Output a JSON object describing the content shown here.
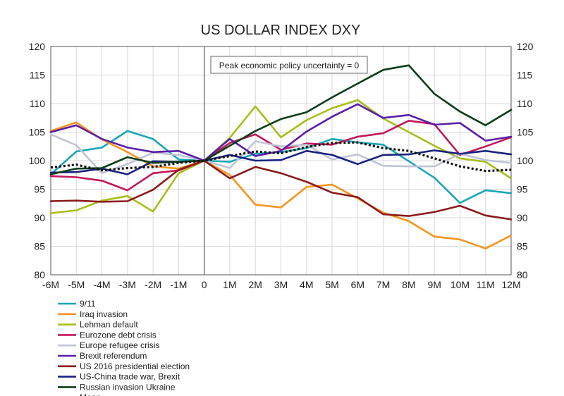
{
  "chart_data": {
    "type": "line",
    "title": "US DOLLAR INDEX DXY",
    "annotation": "Peak economic policy uncertainty = 0",
    "x": [
      "-6M",
      "-5M",
      "-4M",
      "-3M",
      "-2M",
      "-1M",
      "0",
      "1M",
      "2M",
      "3M",
      "4M",
      "5M",
      "6M",
      "7M",
      "8M",
      "9M",
      "10M",
      "11M",
      "12M"
    ],
    "ylim": [
      80,
      120
    ],
    "yticks": [
      80,
      85,
      90,
      95,
      100,
      105,
      110,
      115,
      120
    ],
    "grid": true,
    "legend_position": "bottom-left",
    "series": [
      {
        "name": "9/11",
        "color": "#1aa6b7",
        "dash": false,
        "values": [
          97.6,
          101.6,
          102.3,
          105.2,
          103.8,
          100.2,
          100.0,
          99.8,
          101.2,
          101.5,
          102.2,
          103.8,
          103.2,
          102.8,
          99.9,
          97.0,
          92.6,
          94.8,
          94.3
        ]
      },
      {
        "name": "Iraq invasion",
        "color": "#f7941d",
        "dash": false,
        "values": [
          105.2,
          106.7,
          103.7,
          101.5,
          99.0,
          98.6,
          100.0,
          97.5,
          92.3,
          91.8,
          95.4,
          95.8,
          93.4,
          90.9,
          89.4,
          86.7,
          86.2,
          84.6,
          86.9
        ]
      },
      {
        "name": "Lehman default",
        "color": "#a8bd1a",
        "dash": false,
        "values": [
          90.8,
          91.3,
          93.0,
          93.8,
          91.1,
          97.8,
          100.0,
          104.0,
          109.5,
          104.1,
          107.1,
          109.2,
          110.6,
          107.4,
          105.0,
          102.6,
          100.4,
          99.8,
          96.9
        ]
      },
      {
        "name": "Eurozone debt crisis",
        "color": "#c2185b",
        "dash": false,
        "values": [
          97.3,
          97.1,
          96.5,
          94.8,
          97.8,
          98.3,
          100.0,
          103.1,
          104.6,
          101.9,
          103.0,
          102.8,
          104.2,
          104.8,
          107.0,
          106.4,
          101.0,
          102.5,
          104.1
        ]
      },
      {
        "name": "Europe refugee crisis",
        "color": "#c0c4d6",
        "dash": false,
        "values": [
          104.6,
          102.7,
          97.8,
          99.4,
          101.4,
          101.0,
          100.0,
          98.7,
          103.4,
          102.5,
          102.8,
          100.2,
          101.1,
          99.1,
          99.0,
          99.0,
          101.2,
          100.1,
          99.6
        ]
      },
      {
        "name": "Brexit referendum",
        "color": "#5b1fa8",
        "dash": false,
        "values": [
          105.0,
          106.2,
          103.8,
          102.3,
          101.5,
          101.7,
          100.0,
          103.8,
          100.8,
          101.7,
          105.1,
          107.7,
          109.9,
          107.5,
          108.0,
          106.3,
          106.6,
          103.5,
          104.2
        ]
      },
      {
        "name": "US 2016 presidential election",
        "color": "#8b1a1a",
        "dash": false,
        "values": [
          92.9,
          93.0,
          92.8,
          92.9,
          94.9,
          98.4,
          100.0,
          96.9,
          98.9,
          97.8,
          96.3,
          94.4,
          93.6,
          90.6,
          90.3,
          91.0,
          92.1,
          90.4,
          89.7
        ]
      },
      {
        "name": "US-China trade war, Brexit",
        "color": "#1a237e",
        "dash": false,
        "values": [
          97.9,
          98.0,
          98.6,
          97.6,
          99.9,
          99.8,
          100.0,
          101.0,
          100.0,
          100.1,
          101.7,
          101.0,
          99.4,
          101.0,
          101.1,
          101.8,
          101.2,
          101.7,
          101.1
        ]
      },
      {
        "name": "Russian invasion Ukraine",
        "color": "#0d3d1a",
        "dash": false,
        "values": [
          97.6,
          98.6,
          98.7,
          100.6,
          99.6,
          99.8,
          100.0,
          102.6,
          105.2,
          107.3,
          108.5,
          111.1,
          113.5,
          115.9,
          116.7,
          111.7,
          108.6,
          106.2,
          108.9
        ]
      },
      {
        "name": "Mean",
        "color": "#111111",
        "dash": true,
        "values": [
          98.8,
          99.3,
          98.3,
          98.7,
          98.9,
          99.6,
          100.0,
          100.8,
          101.6,
          101.3,
          102.4,
          103.1,
          103.2,
          102.2,
          101.7,
          100.4,
          99.0,
          98.2,
          98.4
        ]
      }
    ]
  }
}
